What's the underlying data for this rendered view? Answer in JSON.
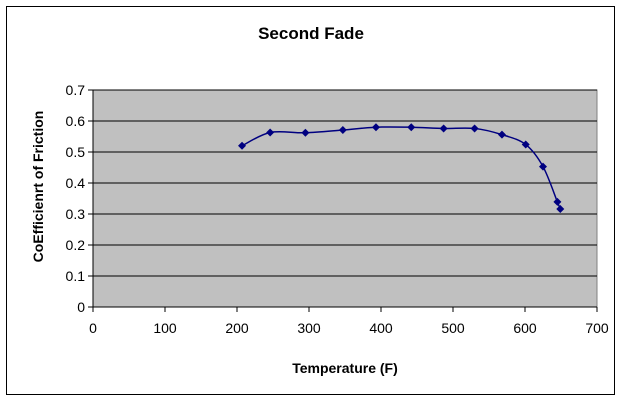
{
  "chart_data": {
    "type": "line",
    "title": "Second Fade",
    "xlabel": "Temperature (F)",
    "ylabel": "CoEfficienrt of Friction",
    "xlim": [
      0,
      700
    ],
    "ylim": [
      0,
      0.7
    ],
    "x_ticks": [
      "0",
      "100",
      "200",
      "300",
      "400",
      "500",
      "600",
      "700"
    ],
    "y_ticks": [
      "0",
      "0.1",
      "0.2",
      "0.3",
      "0.4",
      "0.5",
      "0.6",
      "0.7"
    ],
    "grid": true,
    "legend": "none",
    "series": [
      {
        "color": "#000080",
        "marker": "diamond",
        "smooth": true,
        "x": [
          207,
          246,
          295,
          347,
          393,
          442,
          487,
          530,
          568,
          601,
          625,
          645,
          649
        ],
        "y": [
          0.52,
          0.563,
          0.562,
          0.571,
          0.58,
          0.58,
          0.576,
          0.576,
          0.556,
          0.524,
          0.453,
          0.339,
          0.316
        ]
      }
    ]
  }
}
